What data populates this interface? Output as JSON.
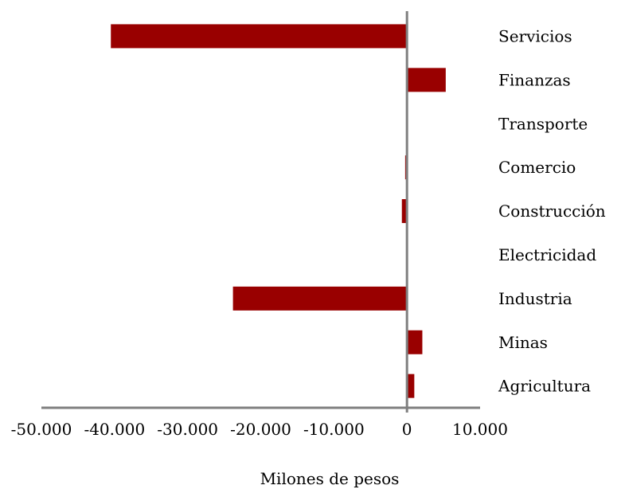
{
  "chart_data": {
    "type": "bar",
    "orientation": "horizontal",
    "categories": [
      "Servicios",
      "Finanzas",
      "Transporte",
      "Comercio",
      "Construcción",
      "Electricidad",
      "Industria",
      "Minas",
      "Agricultura"
    ],
    "values": [
      -40500,
      5300,
      0,
      -250,
      -700,
      0,
      -23800,
      2100,
      1000
    ],
    "xlabel": "Milones de pesos",
    "ylabel": "",
    "xlim": [
      -50000,
      10000
    ],
    "xticks": [
      "-50.000",
      "-40.000",
      "-30.000",
      "-20.000",
      "-10.000",
      "0",
      "10.000"
    ],
    "xtick_values": [
      -50000,
      -40000,
      -30000,
      -20000,
      -10000,
      0,
      10000
    ],
    "grid": false,
    "legend": "none",
    "bar_color": "#990000",
    "axis_color": "#7f7f7f"
  }
}
